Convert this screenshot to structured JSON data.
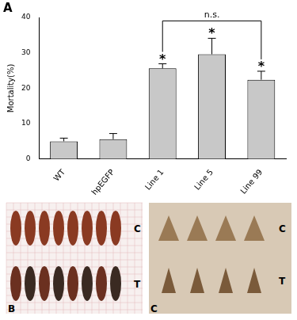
{
  "chart_data": {
    "type": "bar",
    "title": "A",
    "categories": [
      "WT",
      "hpEGFP",
      "Line 1",
      "Line 5",
      "Line 99"
    ],
    "values": [
      5.0,
      5.6,
      25.6,
      29.6,
      22.4
    ],
    "errors": [
      0.9,
      1.6,
      1.3,
      4.5,
      2.4
    ],
    "significance_labels": [
      null,
      null,
      "*",
      "*",
      "*"
    ],
    "brackets": [
      {
        "from": "Line 1",
        "to": "Line 99",
        "label": "n.s."
      }
    ],
    "color": "#c8c8c8",
    "y_label": "Mortality(%)",
    "ylim": [
      0,
      40
    ],
    "yticks": [
      0,
      10,
      20,
      30,
      40
    ],
    "grid": false
  },
  "panels": [
    {
      "label": "B",
      "rows": [
        "C",
        "T"
      ]
    },
    {
      "label": "C",
      "rows": [
        "C",
        "T"
      ]
    }
  ]
}
